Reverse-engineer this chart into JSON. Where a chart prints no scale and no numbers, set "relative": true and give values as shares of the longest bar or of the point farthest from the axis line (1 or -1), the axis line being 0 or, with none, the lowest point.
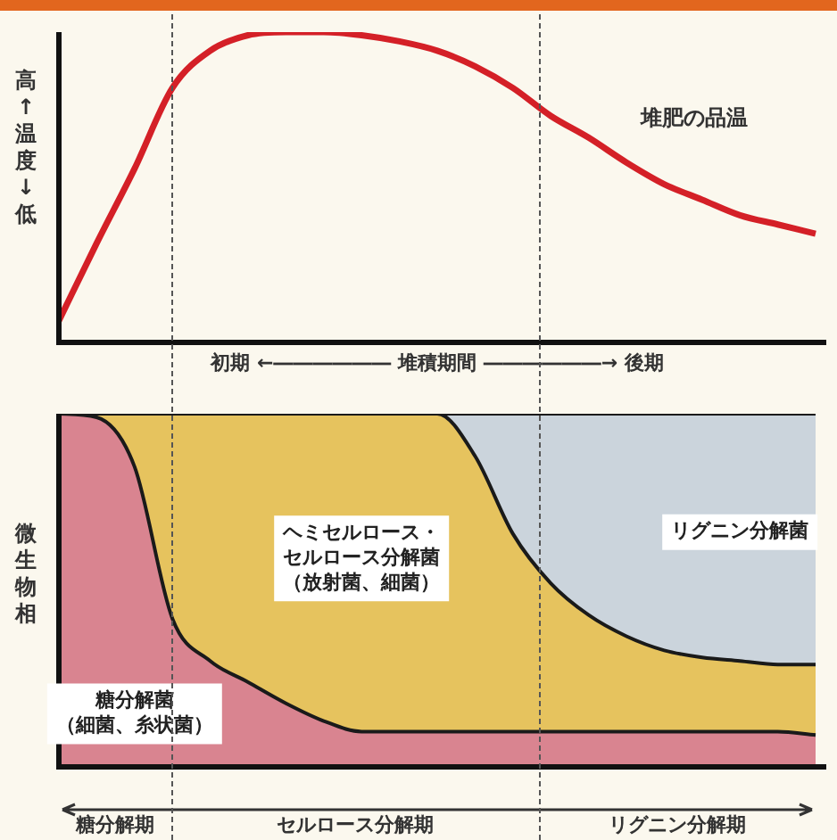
{
  "chart_data": [
    {
      "type": "line",
      "relative": true,
      "xlabel": "初期 ←―――――― 堆積期間 ――――――→ 後期",
      "ylabel": "高↑温度↓低",
      "annotations": [
        "堆肥の品温"
      ],
      "categories": [
        null,
        null,
        null,
        null,
        null,
        null,
        null,
        null,
        null,
        null,
        null,
        null,
        null,
        null,
        null,
        null,
        null,
        null,
        null,
        null,
        null
      ],
      "series": [
        {
          "color": "#d42027",
          "values": [
            0.07,
            0.32,
            0.56,
            0.82,
            0.94,
            0.99,
            1,
            1,
            0.99,
            0.97,
            0.94,
            0.89,
            0.82,
            0.73,
            0.66,
            0.58,
            0.51,
            0.46,
            0.41,
            0.38,
            0.35
          ]
        }
      ],
      "marker": "none"
    },
    {
      "type": "area",
      "relative": true,
      "stacked": true,
      "ylabel": "微生物相",
      "annotations": [
        "糖分解期",
        "セルロース分解期",
        "リグニン分解期"
      ],
      "categories": [
        null,
        null,
        null,
        null,
        null,
        null,
        null,
        null,
        null,
        null,
        null,
        null,
        null,
        null,
        null,
        null,
        null,
        null,
        null,
        null,
        null
      ],
      "series": [
        {
          "name": "糖分解菌（細菌、糸状菌）",
          "color": "#d98490",
          "values": [
            1,
            0.99,
            0.85,
            0.42,
            0.3,
            0.24,
            0.18,
            0.13,
            0.1,
            0.1,
            0.1,
            0.1,
            0.1,
            0.1,
            0.1,
            0.1,
            0.1,
            0.1,
            0.1,
            0.1,
            0.09
          ]
        },
        {
          "name": "ヘミセルロース・セルロース分解菌（放射菌、細菌）",
          "color": "#e6c35e",
          "values": [
            0,
            0.01,
            0.15,
            0.58,
            0.7,
            0.76,
            0.82,
            0.87,
            0.9,
            0.9,
            0.9,
            0.78,
            0.56,
            0.42,
            0.33,
            0.27,
            0.23,
            0.21,
            0.2,
            0.19,
            0.2
          ]
        },
        {
          "name": "リグニン分解菌",
          "color": "#cbd4dc",
          "values": [
            0,
            0,
            0,
            0,
            0,
            0,
            0,
            0,
            0,
            0,
            0,
            0.12,
            0.34,
            0.48,
            0.57,
            0.63,
            0.67,
            0.69,
            0.7,
            0.71,
            0.71
          ]
        }
      ]
    }
  ]
}
